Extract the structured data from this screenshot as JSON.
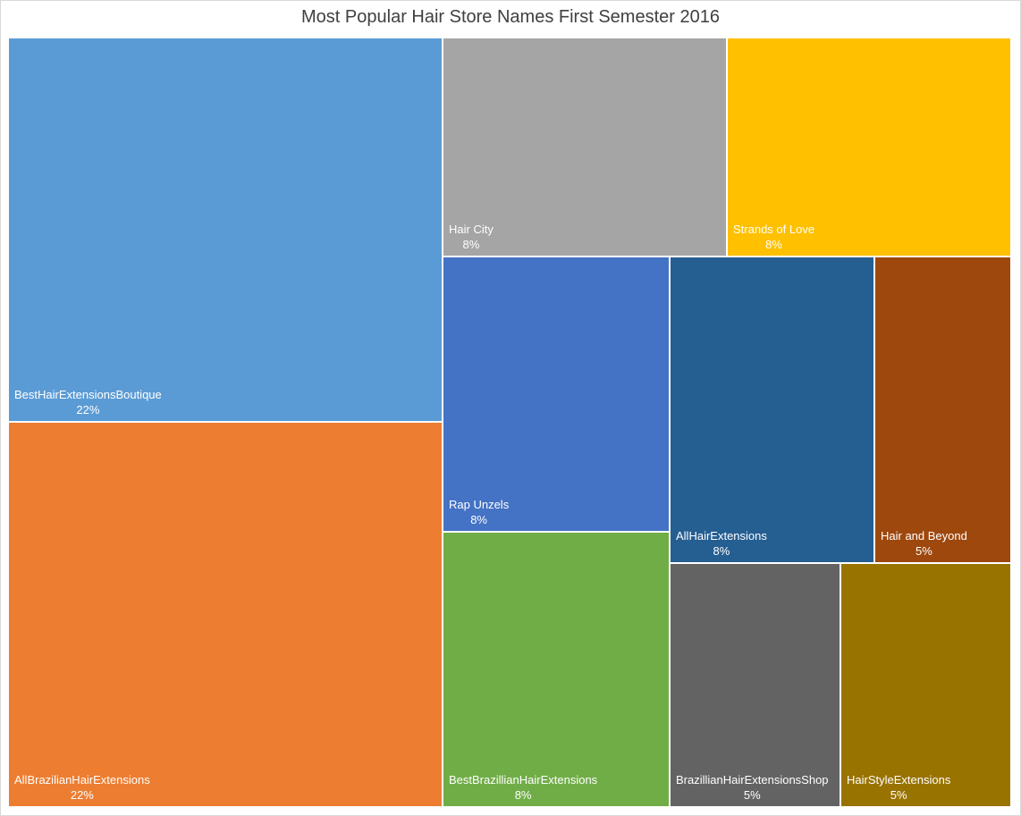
{
  "chart_data": {
    "type": "treemap",
    "title": "Most Popular Hair Store Names First Semester 2016",
    "items": [
      {
        "name": "BestHairExtensionsBoutique",
        "label": "22%",
        "value": 22,
        "color": "#5B9BD5"
      },
      {
        "name": "AllBrazilianHairExtensions",
        "label": "22%",
        "value": 22,
        "color": "#ED7D31"
      },
      {
        "name": "Hair City",
        "label": "8%",
        "value": 8,
        "color": "#A5A5A5"
      },
      {
        "name": "Strands of Love",
        "label": "8%",
        "value": 8,
        "color": "#FFC000"
      },
      {
        "name": "Rap Unzels",
        "label": "8%",
        "value": 8,
        "color": "#4472C4"
      },
      {
        "name": "BestBrazillianHairExtensions",
        "label": "8%",
        "value": 8,
        "color": "#70AD47"
      },
      {
        "name": "AllHairExtensions",
        "label": "8%",
        "value": 8,
        "color": "#255E91"
      },
      {
        "name": "Hair and Beyond",
        "label": "5%",
        "value": 5,
        "color": "#9E480E"
      },
      {
        "name": "BrazillianHairExtensionsShop",
        "label": "5%",
        "value": 5,
        "color": "#636363"
      },
      {
        "name": "HairStyleExtensions",
        "label": "5%",
        "value": 5,
        "color": "#997300"
      }
    ]
  }
}
